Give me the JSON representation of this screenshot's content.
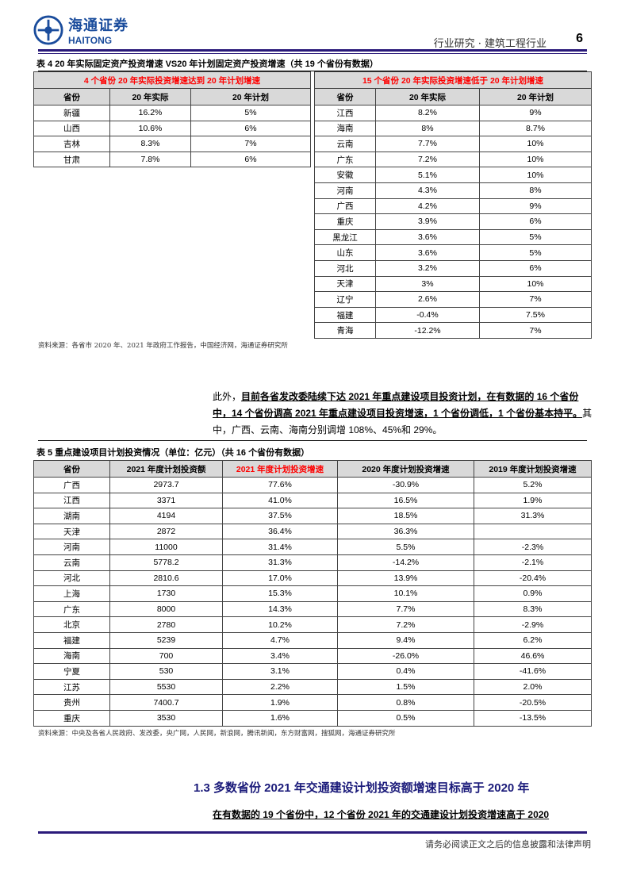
{
  "header": {
    "logo_cn": "海通证券",
    "logo_en": "HAITONG",
    "category": "行业研究 · 建筑工程行业",
    "page": "6"
  },
  "table4": {
    "title": "表 4 20 年实际固定资产投资增速 VS20 年计划固定资产投资增速（共 19 个省份有数据）",
    "left_group": "4 个省份 20 年实际投资增速达到 20 年计划增速",
    "right_group": "15 个省份 20 年实际投资增速低于 20 年计划增速",
    "columns": [
      "省份",
      "20 年实际",
      "20 年计划"
    ],
    "left_rows": [
      [
        "新疆",
        "16.2%",
        "5%"
      ],
      [
        "山西",
        "10.6%",
        "6%"
      ],
      [
        "吉林",
        "8.3%",
        "7%"
      ],
      [
        "甘肃",
        "7.8%",
        "6%"
      ]
    ],
    "right_rows": [
      [
        "江西",
        "8.2%",
        "9%"
      ],
      [
        "海南",
        "8%",
        "8.7%"
      ],
      [
        "云南",
        "7.7%",
        "10%"
      ],
      [
        "广东",
        "7.2%",
        "10%"
      ],
      [
        "安徽",
        "5.1%",
        "10%"
      ],
      [
        "河南",
        "4.3%",
        "8%"
      ],
      [
        "广西",
        "4.2%",
        "9%"
      ],
      [
        "重庆",
        "3.9%",
        "6%"
      ],
      [
        "黑龙江",
        "3.6%",
        "5%"
      ],
      [
        "山东",
        "3.6%",
        "5%"
      ],
      [
        "河北",
        "3.2%",
        "6%"
      ],
      [
        "天津",
        "3%",
        "10%"
      ],
      [
        "辽宁",
        "2.6%",
        "7%"
      ],
      [
        "福建",
        "-0.4%",
        "7.5%"
      ],
      [
        "青海",
        "-12.2%",
        "7%"
      ]
    ],
    "source": "资料来源：各省市 2020 年、2021 年政府工作报告，中国经济网，海通证券研究所"
  },
  "paragraph": {
    "lead": "此外，",
    "bold": "目前各省发改委陆续下达 2021 年重点建设项目投资计划，在有数据的 16 个省份中，14 个省份调高 2021 年重点建设项目投资增速，1 个省份调低，1 个省份基本持平。",
    "rest": "其中，广西、云南、海南分别调增 108%、45%和 29%。"
  },
  "table5": {
    "title": "表 5 重点建设项目计划投资情况（单位：亿元）（共 16 个省份有数据）",
    "columns": [
      "省份",
      "2021 年度计划投资额",
      "2021 年度计划投资增速",
      "2020 年度计划投资增速",
      "2019 年度计划投资增速"
    ],
    "rows": [
      [
        "广西",
        "2973.7",
        "77.6%",
        "-30.9%",
        "5.2%"
      ],
      [
        "江西",
        "3371",
        "41.0%",
        "16.5%",
        "1.9%"
      ],
      [
        "湖南",
        "4194",
        "37.5%",
        "18.5%",
        "31.3%"
      ],
      [
        "天津",
        "2872",
        "36.4%",
        "36.3%",
        ""
      ],
      [
        "河南",
        "11000",
        "31.4%",
        "5.5%",
        "-2.3%"
      ],
      [
        "云南",
        "5778.2",
        "31.3%",
        "-14.2%",
        "-2.1%"
      ],
      [
        "河北",
        "2810.6",
        "17.0%",
        "13.9%",
        "-20.4%"
      ],
      [
        "上海",
        "1730",
        "15.3%",
        "10.1%",
        "0.9%"
      ],
      [
        "广东",
        "8000",
        "14.3%",
        "7.7%",
        "8.3%"
      ],
      [
        "北京",
        "2780",
        "10.2%",
        "7.2%",
        "-2.9%"
      ],
      [
        "福建",
        "5239",
        "4.7%",
        "9.4%",
        "6.2%"
      ],
      [
        "海南",
        "700",
        "3.4%",
        "-26.0%",
        "46.6%"
      ],
      [
        "宁夏",
        "530",
        "3.1%",
        "0.4%",
        "-41.6%"
      ],
      [
        "江苏",
        "5530",
        "2.2%",
        "1.5%",
        "2.0%"
      ],
      [
        "贵州",
        "7400.7",
        "1.9%",
        "0.8%",
        "-20.5%"
      ],
      [
        "重庆",
        "3530",
        "1.6%",
        "0.5%",
        "-13.5%"
      ]
    ],
    "source": "资料来源：中央及各省人民政府、发改委，央广网，人民网，新浪网，腾讯新闻，东方财富网，搜狐网，海通证券研究所"
  },
  "section": {
    "heading": "1.3 多数省份 2021 年交通建设计划投资额增速目标高于 2020 年",
    "sub": "在有数据的 19 个省份中，12 个省份 2021 年的交通建设计划投资增速高于 2020"
  },
  "footer": "请务必阅读正文之后的信息披露和法律声明",
  "colors": {
    "accent": "#2a1a7a",
    "highlight": "#ff0000",
    "header_bg": "#d9d9d9"
  }
}
